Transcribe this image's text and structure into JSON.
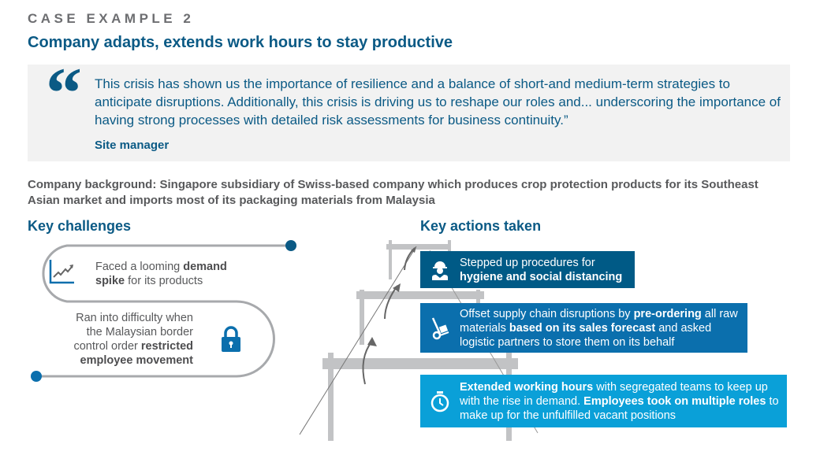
{
  "header": {
    "eyebrow": "CASE EXAMPLE 2",
    "title": "Company adapts, extends work hours to stay productive"
  },
  "quote": {
    "mark": "“",
    "text": "This crisis has shown us the importance of resilience and a balance of short-and medium-term strategies to anticipate disruptions. Additionally, this crisis is driving us to reshape our roles and... underscoring the importance of having strong processes with detailed risk assessments for business continuity.”",
    "attribution": "Site manager"
  },
  "background": "Company background: Singapore subsidiary of Swiss-based company which produces crop protection products for its Southeast Asian market and imports most of its packaging materials from Malaysia",
  "challenges": {
    "heading": "Key challenges",
    "items": [
      {
        "icon": "trend-up-chart-icon",
        "parts": [
          "Faced a looming ",
          "demand spike",
          " for its products"
        ]
      },
      {
        "icon": "lock-icon",
        "parts": [
          "Ran into difficulty when the Malaysian border control order ",
          "restricted employee movement",
          ""
        ]
      }
    ]
  },
  "actions": {
    "heading": "Key actions taken",
    "items": [
      {
        "icon": "worker-helmet-icon",
        "color": "#005a86",
        "parts": [
          "Stepped up procedures for ",
          "hygiene and social distancing",
          "",
          "",
          ""
        ]
      },
      {
        "icon": "hand-truck-icon",
        "color": "#0b6fad",
        "parts": [
          "Offset supply chain disruptions by ",
          "pre-ordering",
          " all raw materials ",
          "based on its sales forecast",
          " and asked logistic partners to store them on its behalf"
        ]
      },
      {
        "icon": "stopwatch-icon",
        "color": "#0aa0d8",
        "parts": [
          "",
          "Extended working hours",
          " with segregated teams to keep up with the rise in demand. ",
          "Employees took on multiple roles",
          " to make up for the unfulfilled vacant positions"
        ]
      }
    ]
  },
  "colors": {
    "brand": "#0b5a85",
    "action1": "#005a86",
    "action2": "#0b6fad",
    "action3": "#0aa0d8",
    "scaffold": "#c2c3c5"
  }
}
